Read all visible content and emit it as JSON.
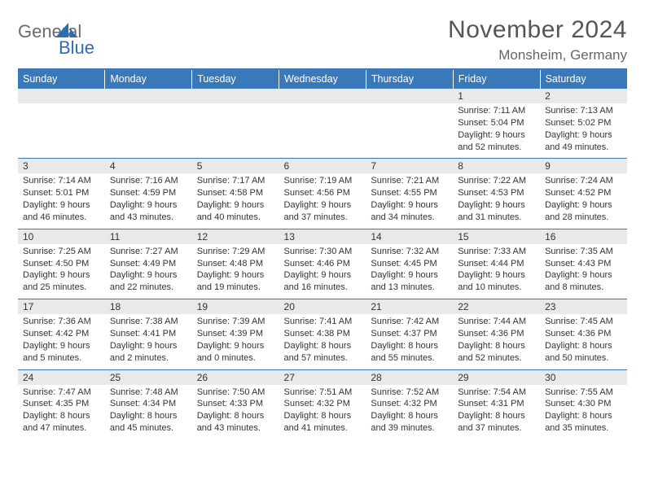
{
  "brand": {
    "part1": "General",
    "part2": "Blue"
  },
  "title": "November 2024",
  "location": "Monsheim, Germany",
  "colors": {
    "header_bg": "#3978b9",
    "header_fg": "#ffffff",
    "daynum_bg": "#e9e9e9",
    "rule": "#3978b9",
    "text": "#333333",
    "brand_gray": "#6a6a6a",
    "brand_blue": "#2a6db5"
  },
  "weekdays": [
    "Sunday",
    "Monday",
    "Tuesday",
    "Wednesday",
    "Thursday",
    "Friday",
    "Saturday"
  ],
  "weeks": [
    [
      null,
      null,
      null,
      null,
      null,
      {
        "n": "1",
        "sr": "7:11 AM",
        "ss": "5:04 PM",
        "dl": "9 hours and 52 minutes."
      },
      {
        "n": "2",
        "sr": "7:13 AM",
        "ss": "5:02 PM",
        "dl": "9 hours and 49 minutes."
      }
    ],
    [
      {
        "n": "3",
        "sr": "7:14 AM",
        "ss": "5:01 PM",
        "dl": "9 hours and 46 minutes."
      },
      {
        "n": "4",
        "sr": "7:16 AM",
        "ss": "4:59 PM",
        "dl": "9 hours and 43 minutes."
      },
      {
        "n": "5",
        "sr": "7:17 AM",
        "ss": "4:58 PM",
        "dl": "9 hours and 40 minutes."
      },
      {
        "n": "6",
        "sr": "7:19 AM",
        "ss": "4:56 PM",
        "dl": "9 hours and 37 minutes."
      },
      {
        "n": "7",
        "sr": "7:21 AM",
        "ss": "4:55 PM",
        "dl": "9 hours and 34 minutes."
      },
      {
        "n": "8",
        "sr": "7:22 AM",
        "ss": "4:53 PM",
        "dl": "9 hours and 31 minutes."
      },
      {
        "n": "9",
        "sr": "7:24 AM",
        "ss": "4:52 PM",
        "dl": "9 hours and 28 minutes."
      }
    ],
    [
      {
        "n": "10",
        "sr": "7:25 AM",
        "ss": "4:50 PM",
        "dl": "9 hours and 25 minutes."
      },
      {
        "n": "11",
        "sr": "7:27 AM",
        "ss": "4:49 PM",
        "dl": "9 hours and 22 minutes."
      },
      {
        "n": "12",
        "sr": "7:29 AM",
        "ss": "4:48 PM",
        "dl": "9 hours and 19 minutes."
      },
      {
        "n": "13",
        "sr": "7:30 AM",
        "ss": "4:46 PM",
        "dl": "9 hours and 16 minutes."
      },
      {
        "n": "14",
        "sr": "7:32 AM",
        "ss": "4:45 PM",
        "dl": "9 hours and 13 minutes."
      },
      {
        "n": "15",
        "sr": "7:33 AM",
        "ss": "4:44 PM",
        "dl": "9 hours and 10 minutes."
      },
      {
        "n": "16",
        "sr": "7:35 AM",
        "ss": "4:43 PM",
        "dl": "9 hours and 8 minutes."
      }
    ],
    [
      {
        "n": "17",
        "sr": "7:36 AM",
        "ss": "4:42 PM",
        "dl": "9 hours and 5 minutes."
      },
      {
        "n": "18",
        "sr": "7:38 AM",
        "ss": "4:41 PM",
        "dl": "9 hours and 2 minutes."
      },
      {
        "n": "19",
        "sr": "7:39 AM",
        "ss": "4:39 PM",
        "dl": "9 hours and 0 minutes."
      },
      {
        "n": "20",
        "sr": "7:41 AM",
        "ss": "4:38 PM",
        "dl": "8 hours and 57 minutes."
      },
      {
        "n": "21",
        "sr": "7:42 AM",
        "ss": "4:37 PM",
        "dl": "8 hours and 55 minutes."
      },
      {
        "n": "22",
        "sr": "7:44 AM",
        "ss": "4:36 PM",
        "dl": "8 hours and 52 minutes."
      },
      {
        "n": "23",
        "sr": "7:45 AM",
        "ss": "4:36 PM",
        "dl": "8 hours and 50 minutes."
      }
    ],
    [
      {
        "n": "24",
        "sr": "7:47 AM",
        "ss": "4:35 PM",
        "dl": "8 hours and 47 minutes."
      },
      {
        "n": "25",
        "sr": "7:48 AM",
        "ss": "4:34 PM",
        "dl": "8 hours and 45 minutes."
      },
      {
        "n": "26",
        "sr": "7:50 AM",
        "ss": "4:33 PM",
        "dl": "8 hours and 43 minutes."
      },
      {
        "n": "27",
        "sr": "7:51 AM",
        "ss": "4:32 PM",
        "dl": "8 hours and 41 minutes."
      },
      {
        "n": "28",
        "sr": "7:52 AM",
        "ss": "4:32 PM",
        "dl": "8 hours and 39 minutes."
      },
      {
        "n": "29",
        "sr": "7:54 AM",
        "ss": "4:31 PM",
        "dl": "8 hours and 37 minutes."
      },
      {
        "n": "30",
        "sr": "7:55 AM",
        "ss": "4:30 PM",
        "dl": "8 hours and 35 minutes."
      }
    ]
  ],
  "labels": {
    "sunrise": "Sunrise:",
    "sunset": "Sunset:",
    "daylight": "Daylight:"
  }
}
